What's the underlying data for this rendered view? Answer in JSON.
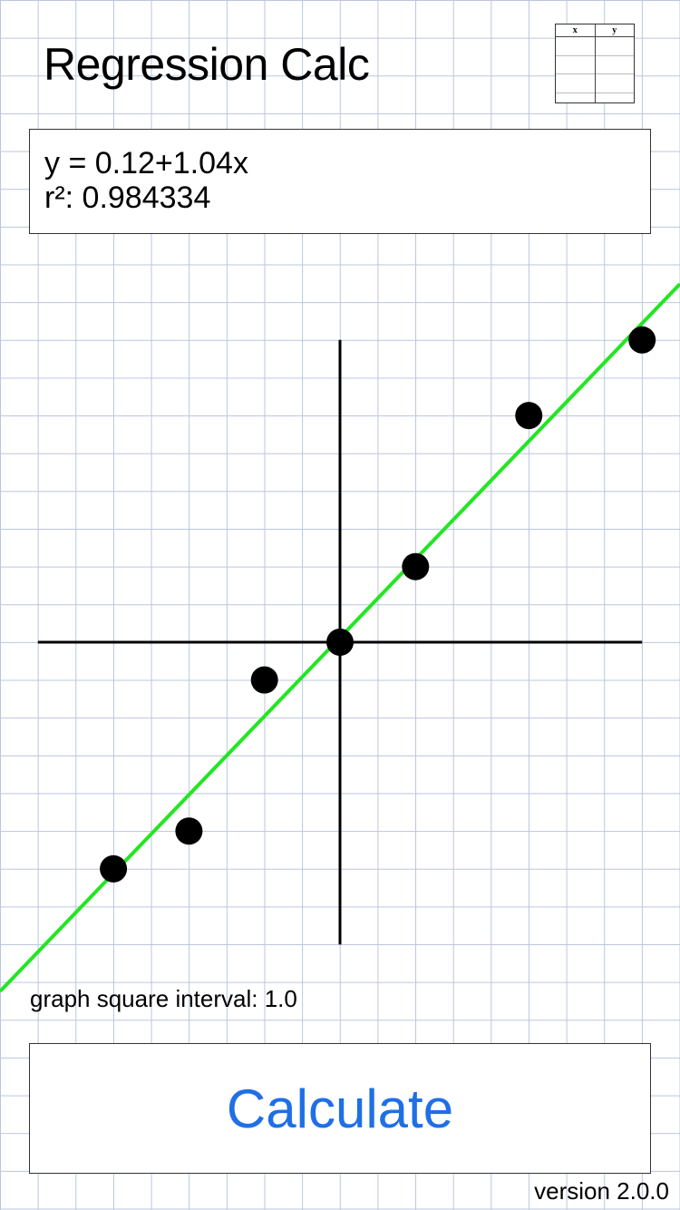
{
  "header": {
    "title": "Regression Calc"
  },
  "table_button": {
    "icon": "data-table-icon",
    "columns": [
      "x",
      "y"
    ],
    "empty_rows": 4
  },
  "result": {
    "equation": "y = 0.12+1.04x",
    "r_squared_label": "r²: 0.984334"
  },
  "chart_data": {
    "type": "scatter",
    "title": "",
    "xlabel": "",
    "ylabel": "",
    "xlim": [
      -8,
      8
    ],
    "ylim": [
      -8,
      8
    ],
    "grid": true,
    "points": [
      {
        "x": -6,
        "y": -6
      },
      {
        "x": -4,
        "y": -5
      },
      {
        "x": -2,
        "y": -1
      },
      {
        "x": 0,
        "y": 0
      },
      {
        "x": 2,
        "y": 2
      },
      {
        "x": 5,
        "y": 6
      },
      {
        "x": 8,
        "y": 8
      }
    ],
    "regression": {
      "intercept": 0.12,
      "slope": 1.04
    },
    "colors": {
      "points": "#000000",
      "axes": "#000000",
      "fit_line": "#22e622"
    }
  },
  "graph": {
    "interval_label": "graph square interval: 1.0"
  },
  "actions": {
    "calculate_label": "Calculate"
  },
  "footer": {
    "version": "version 2.0.0"
  }
}
